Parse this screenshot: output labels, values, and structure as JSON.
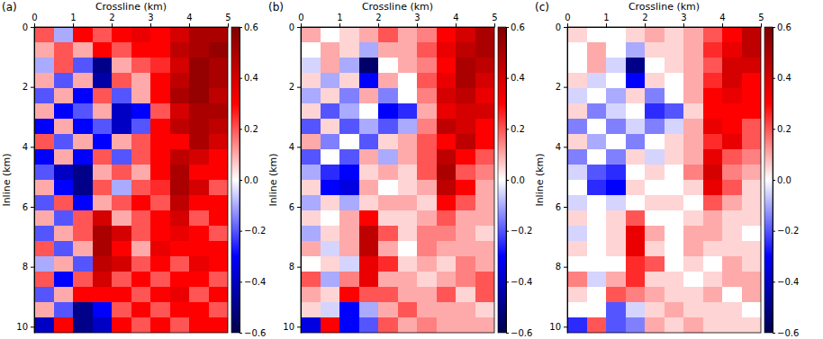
{
  "chart_data": [
    {
      "type": "heatmap",
      "title": "(a)",
      "x_label": "Crossline (km)",
      "y_label": "Inline (km)",
      "xbins": [
        0,
        0.5,
        1,
        1.5,
        2,
        2.5,
        3,
        3.5,
        4,
        4.5,
        5
      ],
      "ybins": [
        0,
        0.51,
        1.02,
        1.53,
        2.04,
        2.55,
        3.06,
        3.57,
        4.08,
        4.59,
        5.1,
        5.61,
        6.12,
        6.63,
        7.14,
        7.65,
        8.16,
        8.67,
        9.18,
        9.69,
        10.2
      ],
      "xlim": [
        0,
        5
      ],
      "ylim": [
        0,
        10.2
      ],
      "xticks": [
        0,
        1,
        2,
        3,
        4,
        5
      ],
      "yticks": [
        0,
        2,
        4,
        6,
        8,
        10
      ],
      "cells": [
        [
          0.2,
          -0.1,
          0.3,
          0.2,
          0.3,
          0.35,
          0.3,
          0.4,
          0.5,
          0.5
        ],
        [
          0.1,
          0.2,
          0.1,
          0.3,
          0.2,
          0.3,
          0.3,
          0.45,
          0.5,
          0.55
        ],
        [
          -0.1,
          0.2,
          -0.2,
          -0.5,
          0.1,
          0.2,
          0.25,
          0.4,
          0.55,
          0.5
        ],
        [
          0.1,
          -0.2,
          0.1,
          -0.45,
          0.2,
          0.1,
          0.3,
          0.45,
          0.55,
          0.5
        ],
        [
          -0.2,
          0.1,
          -0.3,
          0.2,
          -0.2,
          0.1,
          0.3,
          0.5,
          0.55,
          0.45
        ],
        [
          0.1,
          -0.3,
          -0.2,
          0.1,
          -0.4,
          -0.3,
          0.2,
          0.4,
          0.5,
          0.5
        ],
        [
          -0.3,
          0.1,
          -0.3,
          -0.2,
          -0.4,
          -0.2,
          0.3,
          0.45,
          0.5,
          0.45
        ],
        [
          0.2,
          -0.2,
          0.1,
          -0.3,
          0.1,
          0.2,
          0.3,
          0.3,
          0.5,
          0.4
        ],
        [
          -0.3,
          0.1,
          -0.3,
          0.2,
          -0.2,
          0.2,
          0.3,
          0.45,
          0.4,
          0.3
        ],
        [
          -0.2,
          -0.4,
          -0.5,
          0.1,
          0.2,
          0.1,
          0.3,
          0.5,
          0.3,
          0.3
        ],
        [
          0.1,
          -0.3,
          -0.5,
          0.2,
          -0.1,
          0.2,
          0.25,
          0.5,
          0.4,
          0.2
        ],
        [
          -0.2,
          0.2,
          -0.3,
          0.1,
          0.2,
          0.3,
          0.2,
          0.45,
          0.3,
          0.3
        ],
        [
          0.1,
          -0.2,
          0.2,
          0.4,
          0.1,
          0.2,
          0.3,
          0.4,
          0.2,
          0.3
        ],
        [
          -0.2,
          0.1,
          0.2,
          0.5,
          0.4,
          0.2,
          0.3,
          0.35,
          0.3,
          0.2
        ],
        [
          0.2,
          -0.2,
          0.1,
          0.5,
          0.3,
          0.1,
          0.35,
          0.3,
          0.3,
          0.3
        ],
        [
          -0.1,
          0.1,
          -0.2,
          0.45,
          0.4,
          0.2,
          0.3,
          0.2,
          0.35,
          0.3
        ],
        [
          0.2,
          -0.3,
          0.2,
          0.4,
          0.2,
          0.3,
          0.2,
          0.3,
          0.3,
          0.2
        ],
        [
          -0.2,
          0.1,
          0.3,
          0.3,
          0.3,
          0.2,
          0.3,
          0.35,
          0.2,
          0.3
        ],
        [
          0.1,
          -0.2,
          -0.5,
          -0.3,
          0.2,
          0.3,
          0.2,
          0.3,
          0.3,
          0.2
        ],
        [
          -0.4,
          0.3,
          -0.5,
          -0.4,
          0.3,
          0.2,
          0.3,
          0.2,
          0.3,
          0.3
        ]
      ],
      "colorbar": {
        "range": [
          -0.6,
          0.6
        ],
        "ticks": [
          {
            "value": -0.6,
            "label": "−0.6"
          },
          {
            "value": -0.4,
            "label": "−0.4"
          },
          {
            "value": -0.2,
            "label": "−0.2"
          },
          {
            "value": 0,
            "label": "0.0"
          },
          0.2,
          0.4,
          0.6
        ]
      }
    },
    {
      "type": "heatmap",
      "title": "(b)",
      "x_label": "Crossline (km)",
      "y_label": "Inline (km)",
      "xbins": [
        0,
        0.5,
        1,
        1.5,
        2,
        2.5,
        3,
        3.5,
        4,
        4.5,
        5
      ],
      "ybins": [
        0,
        0.51,
        1.02,
        1.53,
        2.04,
        2.55,
        3.06,
        3.57,
        4.08,
        4.59,
        5.1,
        5.61,
        6.12,
        6.63,
        7.14,
        7.65,
        8.16,
        8.67,
        9.18,
        9.69,
        10.2
      ],
      "xlim": [
        0,
        5
      ],
      "ylim": [
        0,
        10.2
      ],
      "xticks": [
        0,
        1,
        2,
        3,
        4,
        5
      ],
      "yticks": [
        0,
        2,
        4,
        6,
        8,
        10
      ],
      "cells": [
        [
          0.1,
          0,
          0.05,
          0.1,
          0.2,
          0.1,
          0.15,
          0.3,
          0.4,
          0.5
        ],
        [
          0,
          0.1,
          0.05,
          -0.1,
          0.1,
          0.1,
          0.2,
          0.35,
          0.45,
          0.5
        ],
        [
          -0.05,
          0.1,
          -0.1,
          -0.55,
          0,
          0.1,
          0.15,
          0.3,
          0.5,
          0.45
        ],
        [
          0.05,
          -0.1,
          0.05,
          -0.3,
          0.1,
          0,
          0.2,
          0.35,
          0.5,
          0.4
        ],
        [
          -0.1,
          0.05,
          -0.15,
          0.1,
          -0.15,
          0,
          0.15,
          0.4,
          0.45,
          0.35
        ],
        [
          0.05,
          -0.2,
          -0.1,
          0,
          -0.3,
          -0.25,
          0.1,
          0.35,
          0.4,
          0.4
        ],
        [
          -0.2,
          0.05,
          -0.2,
          -0.1,
          -0.2,
          -0.1,
          0.15,
          0.45,
          0.4,
          0.3
        ],
        [
          0.1,
          -0.15,
          0,
          -0.2,
          0.05,
          0.1,
          0.2,
          0.3,
          0.45,
          0.3
        ],
        [
          -0.2,
          0,
          -0.2,
          0.1,
          -0.1,
          0.1,
          0.2,
          0.45,
          0.3,
          0.2
        ],
        [
          -0.1,
          -0.25,
          -0.3,
          0.05,
          0.1,
          0.05,
          0.2,
          0.5,
          0.2,
          0.15
        ],
        [
          0.05,
          -0.3,
          -0.35,
          0.1,
          0,
          0.05,
          0.1,
          0.45,
          0.3,
          0.1
        ],
        [
          -0.1,
          0.05,
          -0.1,
          0.05,
          0.1,
          0.1,
          0.05,
          0.3,
          0.2,
          0.1
        ],
        [
          0.05,
          0,
          0.1,
          0.3,
          0.05,
          0.05,
          0.1,
          0.2,
          0.1,
          0.1
        ],
        [
          -0.1,
          0.05,
          0.1,
          0.45,
          0.2,
          0.05,
          0.15,
          0.15,
          0.1,
          0.05
        ],
        [
          0.1,
          -0.05,
          0.1,
          0.45,
          0.1,
          0,
          0.15,
          0.1,
          0.1,
          0.1
        ],
        [
          0,
          0.05,
          -0.05,
          0.35,
          0.25,
          0.05,
          0.1,
          0.05,
          0.15,
          0.1
        ],
        [
          0.2,
          -0.1,
          0.15,
          0.35,
          0.1,
          0.1,
          0.05,
          0.1,
          0.15,
          0.2
        ],
        [
          0.1,
          0.05,
          0.3,
          0.2,
          0.2,
          0.1,
          0.1,
          0.2,
          0.05,
          0.2
        ],
        [
          0.05,
          -0.05,
          -0.3,
          -0.1,
          0.1,
          0.2,
          0.1,
          0.1,
          0.1,
          0.05
        ],
        [
          -0.35,
          0.3,
          -0.3,
          -0.2,
          0.2,
          0.1,
          0.15,
          0.1,
          0.1,
          0.1
        ]
      ],
      "colorbar": {
        "range": [
          -0.6,
          0.6
        ],
        "ticks": [
          {
            "value": -0.6,
            "label": "−0.6"
          },
          {
            "value": -0.4,
            "label": "−0.4"
          },
          {
            "value": -0.2,
            "label": "−0.2"
          },
          {
            "value": 0,
            "label": "0.0"
          },
          0.2,
          0.4,
          0.6
        ]
      }
    },
    {
      "type": "heatmap",
      "title": "(c)",
      "x_label": "Crossline (km)",
      "y_label": "Inline (km)",
      "xbins": [
        0,
        0.5,
        1,
        1.5,
        2,
        2.5,
        3,
        3.5,
        4,
        4.5,
        5
      ],
      "ybins": [
        0,
        0.51,
        1.02,
        1.53,
        2.04,
        2.55,
        3.06,
        3.57,
        4.08,
        4.59,
        5.1,
        5.61,
        6.12,
        6.63,
        7.14,
        7.65,
        8.16,
        8.67,
        9.18,
        9.69,
        10.2
      ],
      "xlim": [
        0,
        5
      ],
      "ylim": [
        0,
        10.2
      ],
      "xticks": [
        0,
        1,
        2,
        3,
        4,
        5
      ],
      "yticks": [
        0,
        2,
        4,
        6,
        8,
        10
      ],
      "cells": [
        [
          0.05,
          0,
          0,
          0.05,
          0.1,
          0.05,
          0.1,
          0.2,
          0.3,
          0.45
        ],
        [
          0,
          0.1,
          0,
          -0.1,
          0.05,
          0.05,
          0.1,
          0.25,
          0.35,
          0.45
        ],
        [
          0,
          0.1,
          -0.05,
          -0.5,
          0,
          0.05,
          0.1,
          0.2,
          0.4,
          0.4
        ],
        [
          0.05,
          -0.05,
          0,
          -0.3,
          0.05,
          0,
          0.1,
          0.25,
          0.4,
          0.3
        ],
        [
          -0.05,
          0,
          -0.1,
          0.05,
          -0.15,
          0,
          0.1,
          0.3,
          0.35,
          0.3
        ],
        [
          0.05,
          -0.15,
          -0.05,
          0,
          -0.25,
          -0.2,
          0.05,
          0.3,
          0.3,
          0.3
        ],
        [
          -0.15,
          0,
          -0.15,
          -0.05,
          -0.15,
          -0.05,
          0.1,
          0.35,
          0.3,
          0.2
        ],
        [
          0.05,
          -0.1,
          0,
          -0.15,
          0,
          0.05,
          0.1,
          0.25,
          0.35,
          0.2
        ],
        [
          -0.15,
          0,
          -0.15,
          0.05,
          -0.05,
          0.05,
          0.1,
          0.35,
          0.2,
          0.15
        ],
        [
          -0.05,
          -0.2,
          -0.25,
          0,
          0.05,
          0,
          0.15,
          0.4,
          0.15,
          0.1
        ],
        [
          0,
          -0.25,
          -0.3,
          0.05,
          0,
          0,
          0.05,
          0.35,
          0.2,
          0.05
        ],
        [
          -0.05,
          0,
          -0.05,
          0,
          0.05,
          0.05,
          0,
          0.2,
          0.1,
          0.05
        ],
        [
          0.05,
          0,
          0.05,
          0.2,
          0,
          0,
          0.05,
          0.1,
          0.05,
          0.05
        ],
        [
          -0.05,
          0,
          0.05,
          0.35,
          0.1,
          0,
          0.1,
          0.1,
          0.05,
          0
        ],
        [
          0.05,
          0,
          0.05,
          0.35,
          0.05,
          0,
          0.1,
          0.05,
          0.05,
          0.05
        ],
        [
          0,
          0,
          0,
          0.25,
          0.2,
          0,
          0.05,
          0,
          0.1,
          0.05
        ],
        [
          0.15,
          -0.05,
          0.1,
          0.25,
          0.05,
          0.05,
          0,
          0.05,
          0.1,
          0.1
        ],
        [
          0.05,
          0,
          0.2,
          0.15,
          0.1,
          0.05,
          0.05,
          0.1,
          0,
          0.1
        ],
        [
          0,
          0,
          -0.2,
          -0.05,
          0.05,
          0.1,
          0.05,
          0.05,
          0.05,
          0
        ],
        [
          -0.25,
          0.2,
          -0.2,
          -0.15,
          0.1,
          0.05,
          0.1,
          0.05,
          0.05,
          0.05
        ]
      ],
      "colorbar": {
        "range": [
          -0.6,
          0.6
        ],
        "ticks": [
          {
            "value": -0.6,
            "label": "−0.6"
          },
          {
            "value": -0.4,
            "label": "−0.4"
          },
          {
            "value": -0.2,
            "label": "−0.2"
          },
          {
            "value": 0,
            "label": "0.0"
          },
          0.2,
          0.4,
          0.6
        ]
      }
    }
  ]
}
